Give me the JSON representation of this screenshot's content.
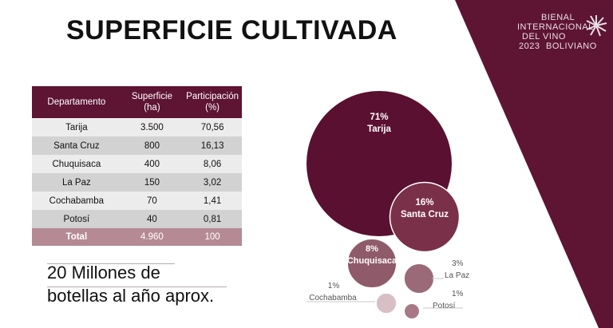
{
  "slide": {
    "title": "SUPERFICIE CULTIVADA",
    "logo_lines": [
      "BIENAL",
      "INTERNACIONAL",
      "DEL VINO",
      "BOLIVIANO",
      "2023"
    ],
    "bottles_line1": "20 Millones de",
    "bottles_line2": "botellas al año aprox.",
    "colors": {
      "brand": "#5e1433",
      "bubble_dark": "#5a1030",
      "bubble_mid": "#8f5b6a",
      "bubble_light": "#d8bfc6"
    }
  },
  "table": {
    "headers": [
      "Departamento",
      "Superficie (ha)",
      "Participación (%)"
    ],
    "rows": [
      [
        "Tarija",
        "3.500",
        "70,56"
      ],
      [
        "Santa Cruz",
        "800",
        "16,13"
      ],
      [
        "Chuquisaca",
        "400",
        "8,06"
      ],
      [
        "La Paz",
        "150",
        "3,02"
      ],
      [
        "Cochabamba",
        "70",
        "1,41"
      ],
      [
        "Potosí",
        "40",
        "0,81"
      ]
    ],
    "total": [
      "Total",
      "4.960",
      "100"
    ]
  },
  "chart_data": {
    "type": "bubble",
    "title": "",
    "series": [
      {
        "label": "Tarija",
        "value_label": "71%",
        "value": 71,
        "value_ha": 3500
      },
      {
        "label": "Santa Cruz",
        "value_label": "16%",
        "value": 16,
        "value_ha": 800
      },
      {
        "label": "Chuquisaca",
        "value_label": "8%",
        "value": 8,
        "value_ha": 400
      },
      {
        "label": "La Paz",
        "value_label": "3%",
        "value": 3,
        "value_ha": 150
      },
      {
        "label": "Cochabamba",
        "value_label": "1%",
        "value": 1,
        "value_ha": 70
      },
      {
        "label": "Potosí",
        "value_label": "1%",
        "value": 1,
        "value_ha": 40
      }
    ]
  }
}
